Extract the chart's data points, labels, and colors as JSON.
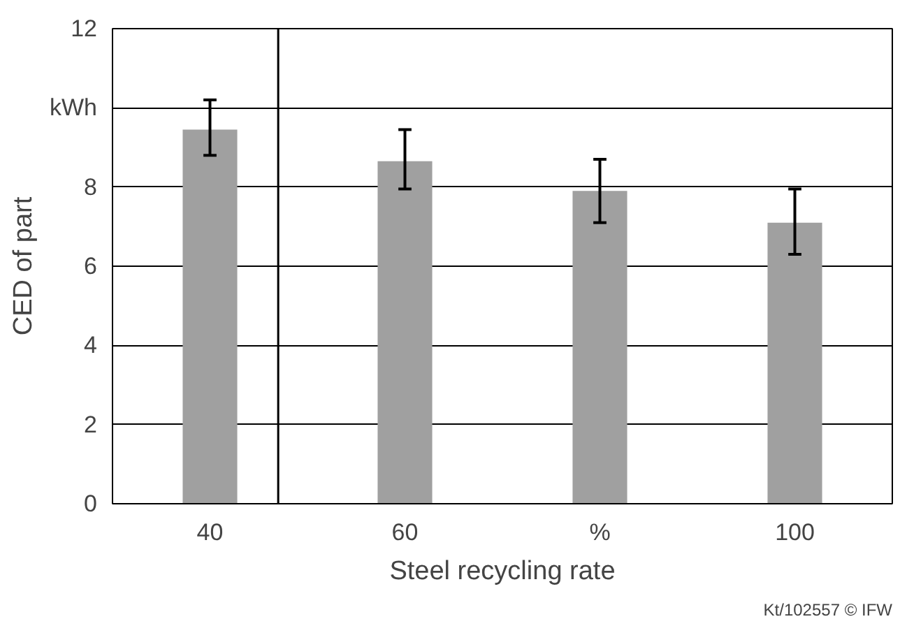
{
  "chart_data": {
    "type": "bar",
    "xlabel": "Steel recycling rate",
    "ylabel": "CED of part",
    "x": [
      40,
      60,
      80,
      100
    ],
    "values": [
      9.45,
      8.65,
      7.9,
      7.1
    ],
    "errors": [
      [
        8.8,
        10.2
      ],
      [
        7.95,
        9.45
      ],
      [
        7.1,
        8.7
      ],
      [
        6.3,
        7.95
      ]
    ],
    "color": "#a0a0a0",
    "xlim": [
      30,
      110
    ],
    "xticks": [
      40,
      60,
      {
        "value": 80,
        "label": "%"
      },
      100
    ],
    "ylim": [
      0,
      12
    ],
    "yticks": [
      0,
      2,
      4,
      6,
      8,
      {
        "value": 10,
        "label": "kWh"
      },
      12
    ],
    "grid": "y",
    "ref_lines": [
      {
        "axis": "x",
        "value": 47,
        "label": null,
        "color": "#000000"
      }
    ],
    "annotations": [
      "Kt/102557 © IFW"
    ]
  }
}
